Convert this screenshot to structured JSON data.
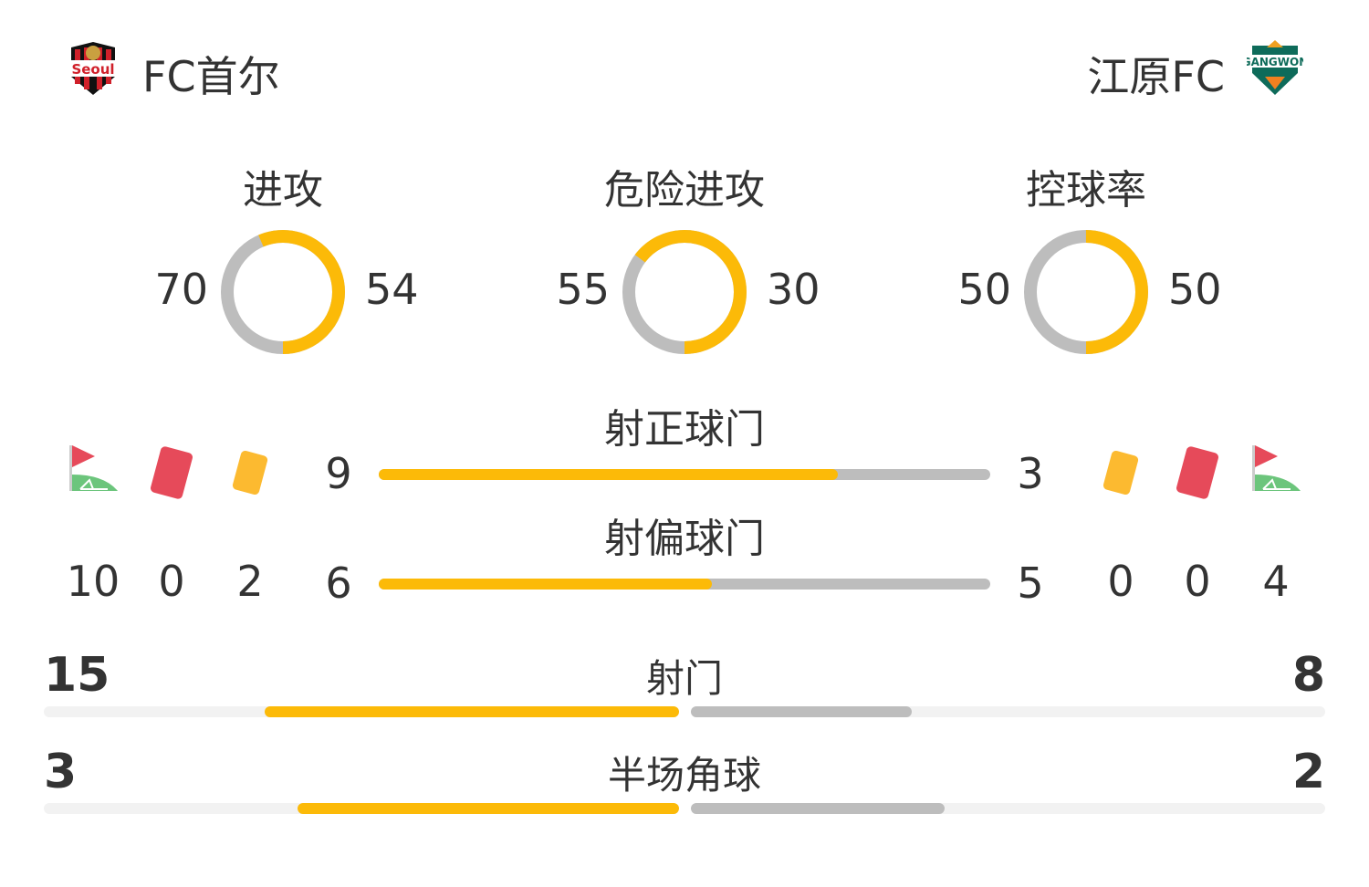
{
  "home": {
    "name": "FC首尔",
    "logo_text": "Seoul"
  },
  "away": {
    "name": "江原FC",
    "logo_text": "GANGWON FC"
  },
  "colors": {
    "home": "#FCBA08",
    "away": "#BDBDBD",
    "track": "#F2F2F2"
  },
  "donuts": [
    {
      "label": "进攻",
      "home": 70,
      "away": 54
    },
    {
      "label": "危险进攻",
      "home": 55,
      "away": 30
    },
    {
      "label": "控球率",
      "home": 50,
      "away": 50
    }
  ],
  "bars": [
    {
      "label": "射正球门",
      "home": 9,
      "away": 3
    },
    {
      "label": "射偏球门",
      "home": 6,
      "away": 5
    }
  ],
  "cards": {
    "icons": [
      "corner-flag-icon",
      "red-card-icon",
      "yellow-card-icon"
    ],
    "home": {
      "corners": 10,
      "red": 0,
      "yellow": 2
    },
    "away": {
      "corners": 4,
      "red": 0,
      "yellow": 0
    }
  },
  "totals": [
    {
      "label": "射门",
      "home": 15,
      "away": 8
    },
    {
      "label": "半场角球",
      "home": 3,
      "away": 2
    }
  ]
}
